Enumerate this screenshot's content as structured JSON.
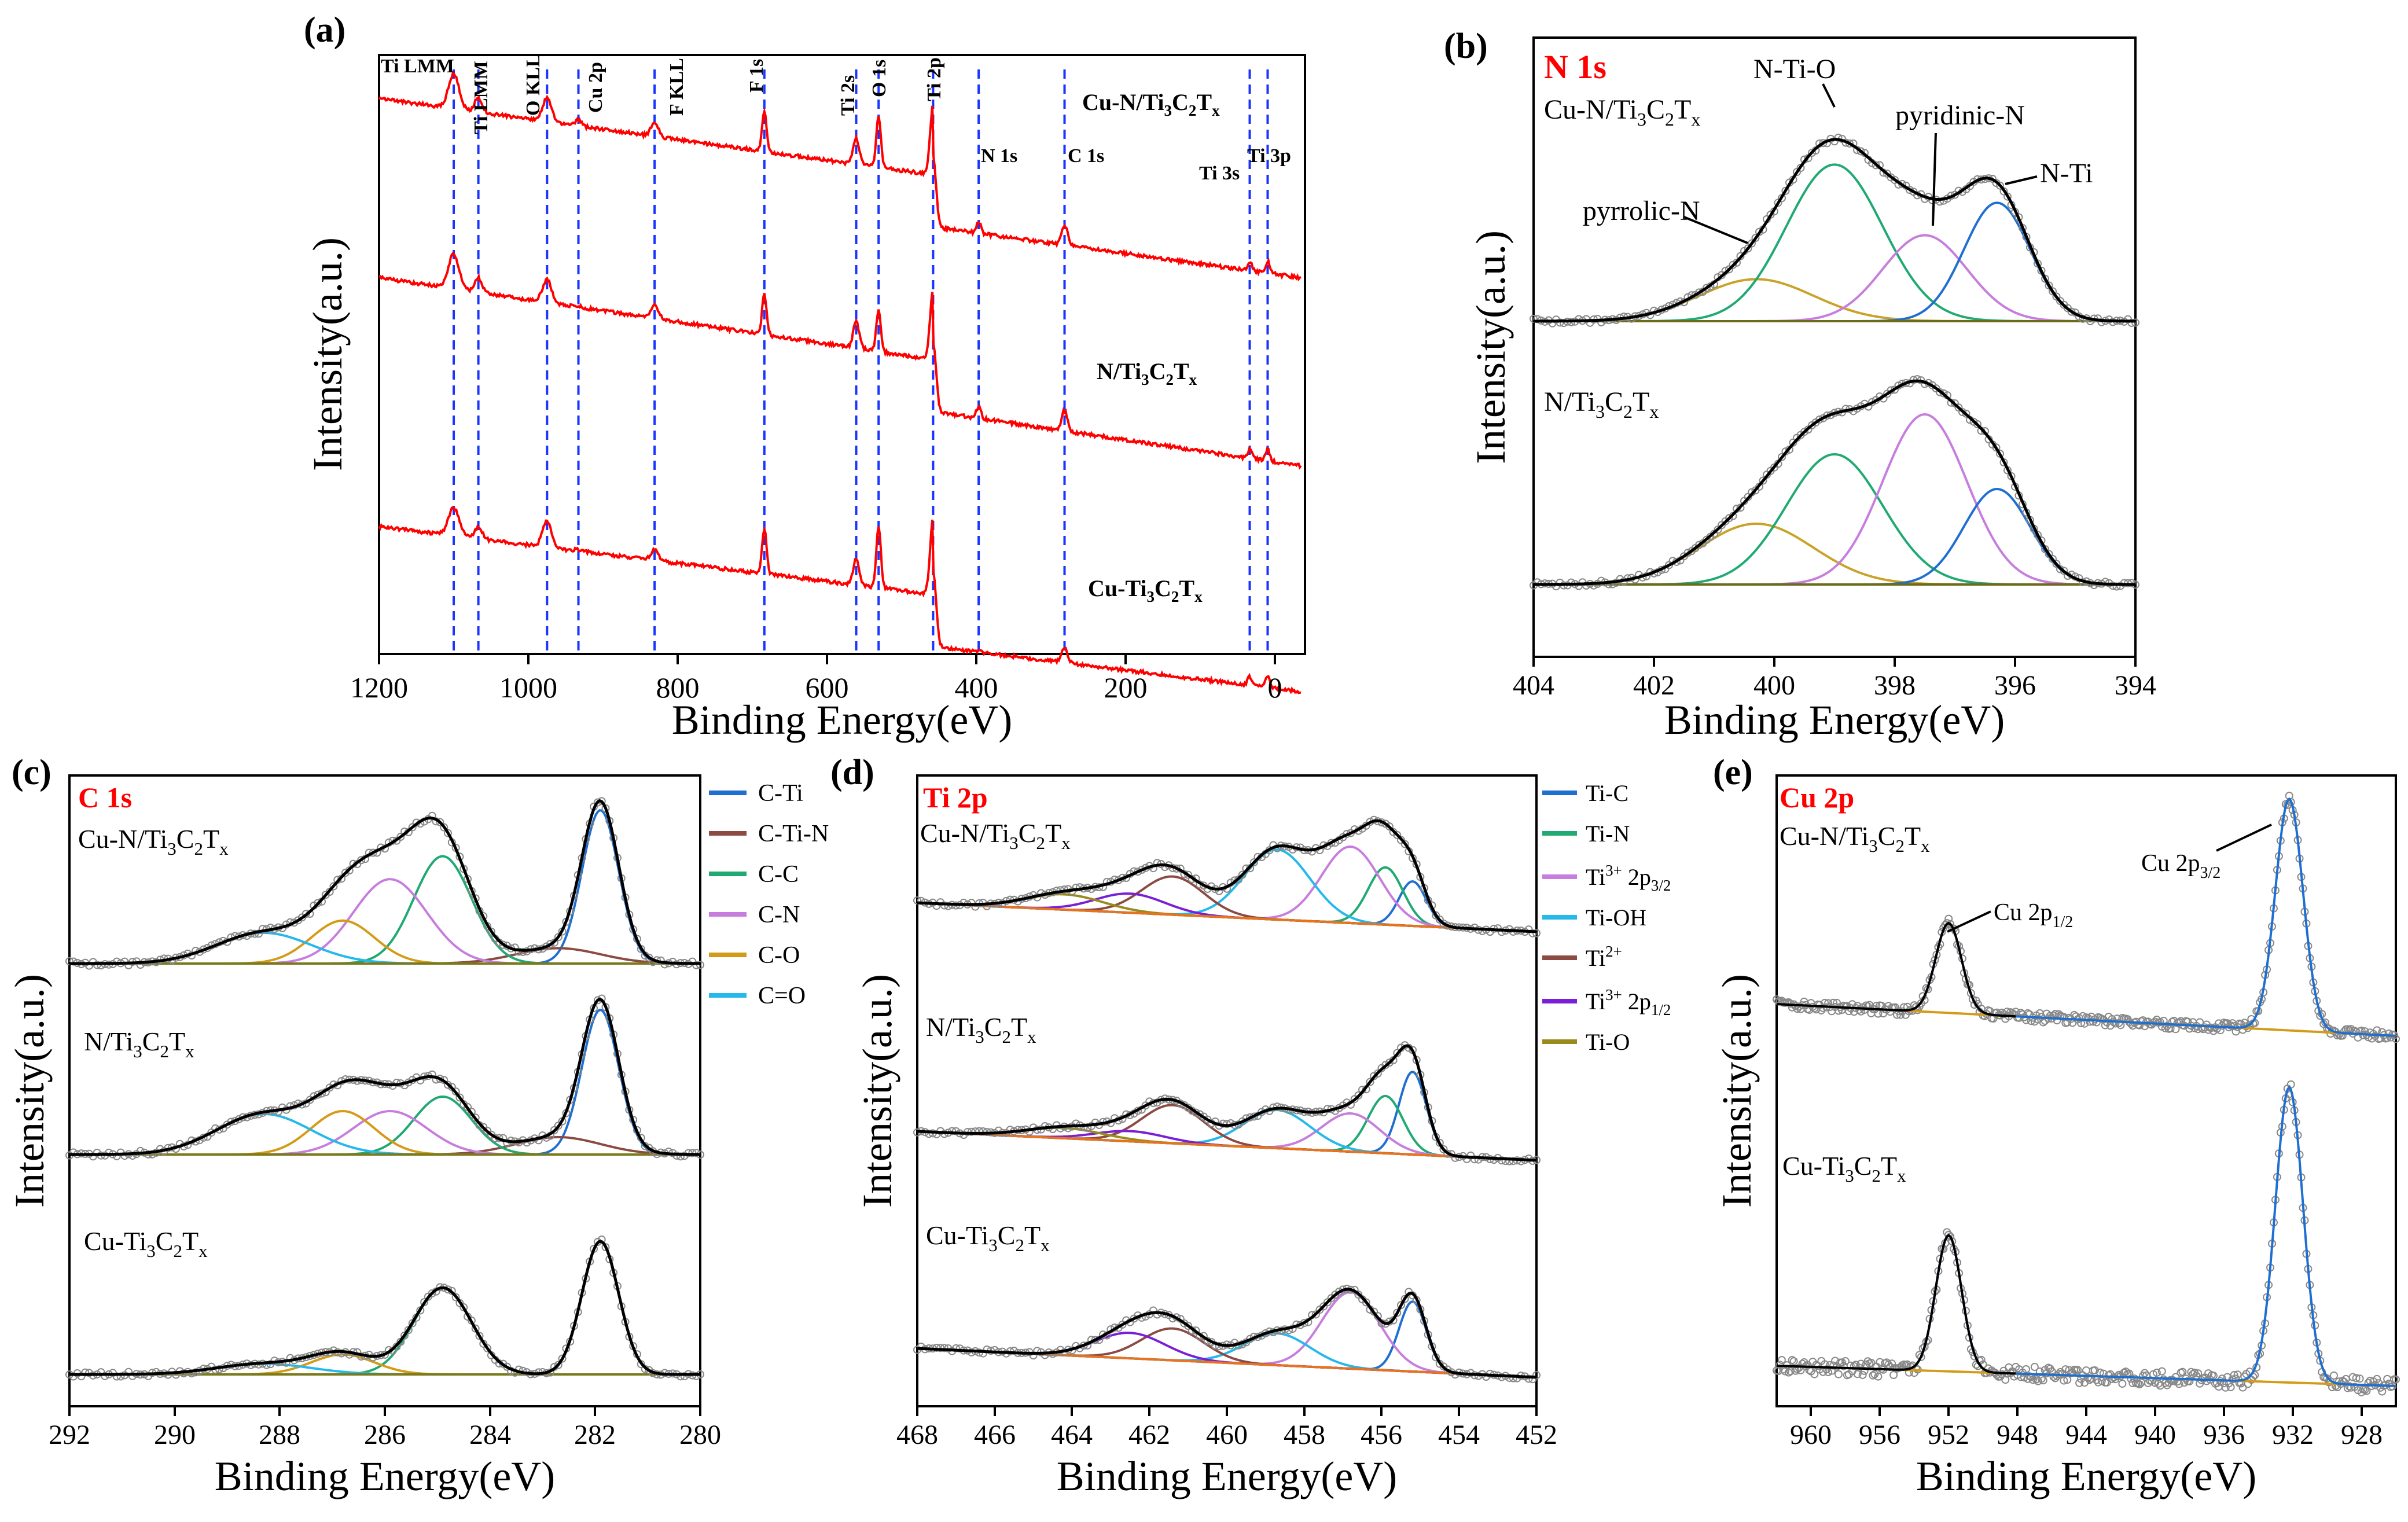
{
  "figure": {
    "chart_data": [
      {
        "panel": "(a)",
        "type": "line",
        "title": "",
        "xlabel": "Binding Energy(eV)",
        "ylabel": "Intensity(a.u.)",
        "xlim": [
          1200,
          -40
        ],
        "xticks": [
          1200,
          1000,
          800,
          600,
          400,
          200,
          0
        ],
        "peak_lines": [
          {
            "label": "Ti LMM",
            "x": 1100
          },
          {
            "label": "Ti LMM",
            "x": 1067
          },
          {
            "label": "O KLL",
            "x": 975
          },
          {
            "label": "Cu 2p",
            "x": 933
          },
          {
            "label": "F KLL",
            "x": 831
          },
          {
            "label": "F 1s",
            "x": 684
          },
          {
            "label": "Ti 2s",
            "x": 561
          },
          {
            "label": "O 1s",
            "x": 531
          },
          {
            "label": "Ti 2p",
            "x": 458
          },
          {
            "label": "N 1s",
            "x": 397
          },
          {
            "label": "C 1s",
            "x": 282
          },
          {
            "label": "Ti 3s",
            "x": 34
          },
          {
            "label": "Ti 3p",
            "x": 10
          }
        ],
        "series": [
          {
            "name": "Cu-N/Ti₃C₂Tₓ",
            "color": "#ff0000"
          },
          {
            "name": "N/Ti₃C₂Tₓ",
            "color": "#ff0000"
          },
          {
            "name": "Cu-Ti₃C₂Tₓ",
            "color": "#ff0000"
          }
        ]
      },
      {
        "panel": "(b)",
        "type": "line",
        "title": "N 1s",
        "xlabel": "Binding Energy(eV)",
        "ylabel": "Intensity(a.u.)",
        "xlim": [
          404,
          394
        ],
        "xticks": [
          404,
          402,
          400,
          398,
          396,
          394
        ],
        "components": [
          {
            "name": "pyrrolic-N",
            "center": 400.3,
            "color": "#c9a227"
          },
          {
            "name": "N-Ti-O",
            "center": 399.0,
            "color": "#20a972"
          },
          {
            "name": "pyridinic-N",
            "center": 397.5,
            "color": "#c77ddd"
          },
          {
            "name": "N-Ti",
            "center": 396.3,
            "color": "#1f6fd1"
          }
        ],
        "samples": [
          {
            "name": "Cu-N/Ti₃C₂Tₓ",
            "amplitudes": [
              0.22,
              0.82,
              0.45,
              0.62
            ]
          },
          {
            "name": "N/Ti₃C₂Tₓ",
            "amplitudes": [
              0.35,
              0.75,
              0.98,
              0.55
            ]
          }
        ]
      },
      {
        "panel": "(c)",
        "type": "line",
        "title": "C 1s",
        "xlabel": "Binding Energy(eV)",
        "ylabel": "Intensity(a.u.)",
        "xlim": [
          292,
          280
        ],
        "xticks": [
          292,
          290,
          288,
          286,
          284,
          282,
          280
        ],
        "legend": [
          "C-Ti",
          "C-Ti-N",
          "C-C",
          "C-N",
          "C-O",
          "C=O"
        ],
        "components": [
          {
            "name": "C-Ti",
            "center": 281.9,
            "color": "#1f6fd1"
          },
          {
            "name": "C-Ti-N",
            "center": 282.7,
            "color": "#8b4a42"
          },
          {
            "name": "C-C",
            "center": 284.9,
            "color": "#20a972"
          },
          {
            "name": "C-N",
            "center": 285.9,
            "color": "#c77ddd"
          },
          {
            "name": "C-O",
            "center": 286.8,
            "color": "#d39b17"
          },
          {
            "name": "C=O",
            "center": 288.3,
            "color": "#25b8ea"
          }
        ],
        "samples": [
          {
            "name": "Cu-N/Ti₃C₂Tₓ",
            "amplitudes": [
              1.0,
              0.1,
              0.7,
              0.55,
              0.28,
              0.2
            ]
          },
          {
            "name": "N/Ti₃C₂Tₓ",
            "amplitudes": [
              1.0,
              0.12,
              0.4,
              0.3,
              0.3,
              0.28
            ]
          },
          {
            "name": "Cu-Ti₃C₂Tₓ",
            "amplitudes": [
              1.0,
              0.0,
              0.65,
              0.0,
              0.15,
              0.08
            ]
          }
        ]
      },
      {
        "panel": "(d)",
        "type": "line",
        "title": "Ti 2p",
        "xlabel": "Binding Energy(eV)",
        "ylabel": "Intensity(a.u.)",
        "xlim": [
          468,
          452
        ],
        "xticks": [
          468,
          466,
          464,
          462,
          460,
          458,
          456,
          454,
          452
        ],
        "legend": [
          "Ti-C",
          "Ti-N",
          "Ti³⁺ 2p₃/₂",
          "Ti-OH",
          "Ti²⁺",
          "Ti³⁺ 2p₁/₂",
          "Ti-O"
        ],
        "components": [
          {
            "name": "Ti-C",
            "center": 455.2,
            "color": "#1f6fd1"
          },
          {
            "name": "Ti-N",
            "center": 455.9,
            "color": "#20a972"
          },
          {
            "name": "Ti³⁺ 2p₃/₂",
            "center": 456.8,
            "color": "#c77ddd"
          },
          {
            "name": "Ti-OH",
            "center": 458.7,
            "color": "#25b8ea"
          },
          {
            "name": "Ti²⁺",
            "center": 461.4,
            "color": "#8b4a42"
          },
          {
            "name": "Ti³⁺ 2p₁/₂",
            "center": 462.5,
            "color": "#7a1fd6"
          },
          {
            "name": "Ti-O",
            "center": 464.2,
            "color": "#9a8a1c"
          }
        ]
      },
      {
        "panel": "(e)",
        "type": "line",
        "title": "Cu 2p",
        "xlabel": "Binding Energy(eV)",
        "ylabel": "Intensity(a.u.)",
        "xlim": [
          962,
          926
        ],
        "xticks": [
          960,
          956,
          952,
          948,
          944,
          940,
          936,
          932,
          928
        ],
        "peaks": [
          {
            "name": "Cu 2p₁/₂",
            "center": 952.0
          },
          {
            "name": "Cu 2p₃/₂",
            "center": 932.2
          }
        ],
        "samples": [
          "Cu-N/Ti₃C₂Tₓ",
          "Cu-Ti₃C₂Tₓ"
        ]
      }
    ]
  },
  "labels": {
    "a": {
      "tag": "(a)",
      "samples": [
        "Cu-N/Ti",
        "3",
        "C",
        "2",
        "T",
        "x",
        "N/Ti",
        "3",
        "C",
        "2",
        "T",
        "x",
        "Cu-Ti",
        "3",
        "C",
        "2",
        "T",
        "x"
      ],
      "peaks": [
        "Ti LMM",
        "Ti LMM",
        "O KLL",
        "Cu 2p",
        "F KLL",
        "F 1s",
        "Ti 2s",
        "O 1s",
        "Ti 2p",
        "N 1s",
        "C 1s",
        "Ti 3s",
        "Ti 3p"
      ],
      "ticks": [
        "1200",
        "1000",
        "800",
        "600",
        "400",
        "200",
        "0"
      ]
    },
    "b": {
      "tag": "(b)",
      "title": "N 1s",
      "s1": [
        "Cu-N/Ti",
        "3",
        "C",
        "2",
        "T",
        "x"
      ],
      "s2": [
        "N/Ti",
        "3",
        "C",
        "2",
        "T",
        "x"
      ],
      "ann": [
        "N-Ti-O",
        "pyridinic-N",
        "pyrrolic-N",
        "N-Ti"
      ],
      "ticks": [
        "404",
        "402",
        "400",
        "398",
        "396",
        "394"
      ]
    },
    "c": {
      "tag": "(c)",
      "title": "C 1s",
      "s1": [
        "Cu-N/Ti",
        "3",
        "C",
        "2",
        "T",
        "x"
      ],
      "s2": [
        "N/Ti",
        "3",
        "C",
        "2",
        "T",
        "x"
      ],
      "s3": [
        "Cu-Ti",
        "3",
        "C",
        "2",
        "T",
        "x"
      ],
      "ticks": [
        "292",
        "290",
        "288",
        "286",
        "284",
        "282",
        "280"
      ],
      "legend": [
        "C-Ti",
        "C-Ti-N",
        "C-C",
        "C-N",
        "C-O",
        "C=O"
      ]
    },
    "d": {
      "tag": "(d)",
      "title": "Ti 2p",
      "s1": [
        "Cu-N/Ti",
        "3",
        "C",
        "2",
        "T",
        "x"
      ],
      "s2": [
        "N/Ti",
        "3",
        "C",
        "2",
        "T",
        "x"
      ],
      "s3": [
        "Cu-Ti",
        "3",
        "C",
        "2",
        "T",
        "x"
      ],
      "ticks": [
        "468",
        "466",
        "464",
        "462",
        "460",
        "458",
        "456",
        "454",
        "452"
      ],
      "legend": [
        "Ti-C",
        "Ti-N",
        "Ti",
        "3+",
        " 2p",
        "3/2",
        "Ti-OH",
        "Ti",
        "2+",
        "Ti",
        "3+",
        " 2p",
        "1/2",
        "Ti-O"
      ]
    },
    "e": {
      "tag": "(e)",
      "title": "Cu 2p",
      "s1": [
        "Cu-N/Ti",
        "3",
        "C",
        "2",
        "T",
        "x"
      ],
      "s2": [
        "Cu-Ti",
        "3",
        "C",
        "2",
        "T",
        "x"
      ],
      "ann": [
        "Cu 2p",
        "1/2",
        "Cu 2p",
        "3/2"
      ],
      "ticks": [
        "960",
        "956",
        "952",
        "948",
        "944",
        "940",
        "936",
        "932",
        "928"
      ]
    },
    "xlabel": "Binding Energy(eV)",
    "ylabel": "Intensity(a.u.)"
  }
}
